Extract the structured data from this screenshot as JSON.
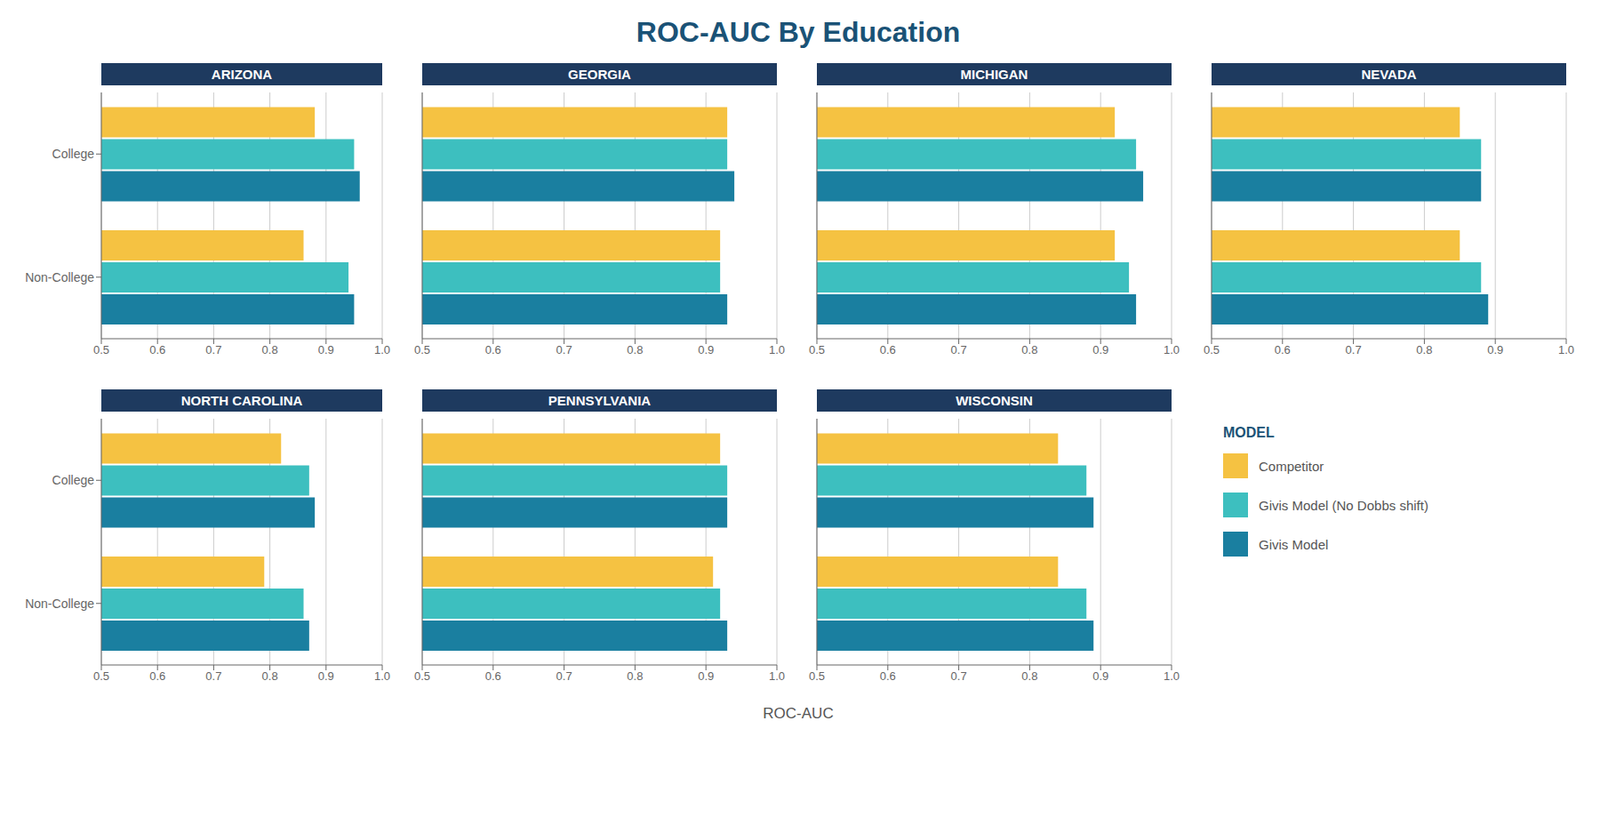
{
  "title": "ROC-AUC By Education",
  "xlabel": "ROC-AUC",
  "legend_title": "MODEL",
  "legend": "lower right",
  "chart_data": [
    {
      "type": "bar",
      "title": "ARIZONA",
      "orientation": "horizontal",
      "categories": [
        "College",
        "Non-College"
      ],
      "series": [
        {
          "name": "Competitor",
          "color": "#F5C242",
          "values": [
            0.88,
            0.86
          ]
        },
        {
          "name": "Givis Model (No Dobbs shift)",
          "color": "#3dbfbf",
          "values": [
            0.95,
            0.94
          ]
        },
        {
          "name": "Givis Model",
          "color": "#1a7fa0",
          "values": [
            0.96,
            0.95
          ]
        }
      ],
      "xlim": [
        0.5,
        1.0
      ],
      "xticks": [
        0.5,
        0.6,
        0.7,
        0.8,
        0.9,
        {
          "value": 1.0,
          "label": "1.0"
        }
      ],
      "grid": true
    },
    {
      "type": "bar",
      "title": "GEORGIA",
      "orientation": "horizontal",
      "categories": [
        "College",
        "Non-College"
      ],
      "series": [
        {
          "name": "Competitor",
          "color": "#F5C242",
          "values": [
            0.93,
            0.92
          ]
        },
        {
          "name": "Givis Model (No Dobbs shift)",
          "color": "#3dbfbf",
          "values": [
            0.93,
            0.92
          ]
        },
        {
          "name": "Givis Model",
          "color": "#1a7fa0",
          "values": [
            0.94,
            0.93
          ]
        }
      ],
      "xlim": [
        0.5,
        1.0
      ],
      "xticks": [
        0.5,
        0.6,
        0.7,
        0.8,
        0.9,
        {
          "value": 1.0,
          "label": "1.0"
        }
      ],
      "grid": true,
      "tick_labels": "x"
    },
    {
      "type": "bar",
      "title": "MICHIGAN",
      "orientation": "horizontal",
      "categories": [
        "College",
        "Non-College"
      ],
      "series": [
        {
          "name": "Competitor",
          "color": "#F5C242",
          "values": [
            0.92,
            0.92
          ]
        },
        {
          "name": "Givis Model (No Dobbs shift)",
          "color": "#3dbfbf",
          "values": [
            0.95,
            0.94
          ]
        },
        {
          "name": "Givis Model",
          "color": "#1a7fa0",
          "values": [
            0.96,
            0.95
          ]
        }
      ],
      "xlim": [
        0.5,
        1.0
      ],
      "xticks": [
        0.5,
        0.6,
        0.7,
        0.8,
        0.9,
        {
          "value": 1.0,
          "label": "1.0"
        }
      ],
      "grid": true,
      "tick_labels": "x"
    },
    {
      "type": "bar",
      "title": "NEVADA",
      "orientation": "horizontal",
      "categories": [
        "College",
        "Non-College"
      ],
      "series": [
        {
          "name": "Competitor",
          "color": "#F5C242",
          "values": [
            0.85,
            0.85
          ]
        },
        {
          "name": "Givis Model (No Dobbs shift)",
          "color": "#3dbfbf",
          "values": [
            0.88,
            0.88
          ]
        },
        {
          "name": "Givis Model",
          "color": "#1a7fa0",
          "values": [
            0.88,
            0.89
          ]
        }
      ],
      "xlim": [
        0.5,
        1.0
      ],
      "xticks": [
        0.5,
        0.6,
        0.7,
        0.8,
        0.9,
        {
          "value": 1.0,
          "label": "1.0"
        }
      ],
      "grid": true,
      "tick_labels": "x"
    },
    {
      "type": "bar",
      "title": "NORTH CAROLINA",
      "orientation": "horizontal",
      "categories": [
        "College",
        "Non-College"
      ],
      "series": [
        {
          "name": "Competitor",
          "color": "#F5C242",
          "values": [
            0.82,
            0.79
          ]
        },
        {
          "name": "Givis Model (No Dobbs shift)",
          "color": "#3dbfbf",
          "values": [
            0.87,
            0.86
          ]
        },
        {
          "name": "Givis Model",
          "color": "#1a7fa0",
          "values": [
            0.88,
            0.87
          ]
        }
      ],
      "xlim": [
        0.5,
        1.0
      ],
      "xticks": [
        0.5,
        0.6,
        0.7,
        0.8,
        0.9,
        {
          "value": 1.0,
          "label": "1.0"
        }
      ],
      "grid": true
    },
    {
      "type": "bar",
      "title": "PENNSYLVANIA",
      "orientation": "horizontal",
      "categories": [
        "College",
        "Non-College"
      ],
      "series": [
        {
          "name": "Competitor",
          "color": "#F5C242",
          "values": [
            0.92,
            0.91
          ]
        },
        {
          "name": "Givis Model (No Dobbs shift)",
          "color": "#3dbfbf",
          "values": [
            0.93,
            0.92
          ]
        },
        {
          "name": "Givis Model",
          "color": "#1a7fa0",
          "values": [
            0.93,
            0.93
          ]
        }
      ],
      "xlim": [
        0.5,
        1.0
      ],
      "xticks": [
        0.5,
        0.6,
        0.7,
        0.8,
        0.9,
        {
          "value": 1.0,
          "label": "1.0"
        }
      ],
      "grid": true,
      "tick_labels": "x"
    },
    {
      "type": "bar",
      "title": "WISCONSIN",
      "orientation": "horizontal",
      "categories": [
        "College",
        "Non-College"
      ],
      "series": [
        {
          "name": "Competitor",
          "color": "#F5C242",
          "values": [
            0.84,
            0.84
          ]
        },
        {
          "name": "Givis Model (No Dobbs shift)",
          "color": "#3dbfbf",
          "values": [
            0.88,
            0.88
          ]
        },
        {
          "name": "Givis Model",
          "color": "#1a7fa0",
          "values": [
            0.89,
            0.89
          ]
        }
      ],
      "xlim": [
        0.5,
        1.0
      ],
      "xticks": [
        0.5,
        0.6,
        0.7,
        0.8,
        0.9,
        {
          "value": 1.0,
          "label": "1.0"
        }
      ],
      "grid": true,
      "tick_labels": "x"
    }
  ]
}
